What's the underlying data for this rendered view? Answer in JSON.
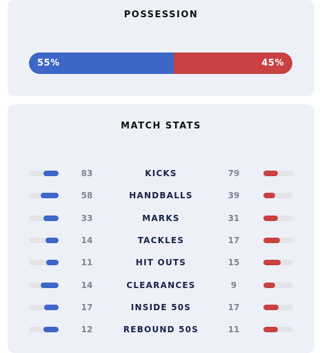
{
  "possession": {
    "title": "POSSESSION",
    "values": [
      55,
      45
    ],
    "value_labels": [
      "55%",
      "45%"
    ],
    "colors": [
      "#3d66c9",
      "#c94142"
    ]
  },
  "match_stats": {
    "title": "MATCH STATS",
    "colors": [
      "#3d66c9",
      "#c94142"
    ],
    "rows": [
      {
        "label": "KICKS",
        "home": 83,
        "away": 79
      },
      {
        "label": "HANDBALLS",
        "home": 58,
        "away": 39
      },
      {
        "label": "MARKS",
        "home": 33,
        "away": 31
      },
      {
        "label": "TACKLES",
        "home": 14,
        "away": 17
      },
      {
        "label": "HIT OUTS",
        "home": 11,
        "away": 15
      },
      {
        "label": "CLEARANCES",
        "home": 14,
        "away": 9
      },
      {
        "label": "INSIDE 50S",
        "home": 17,
        "away": 17
      },
      {
        "label": "REBOUND 50S",
        "home": 12,
        "away": 11
      }
    ]
  }
}
